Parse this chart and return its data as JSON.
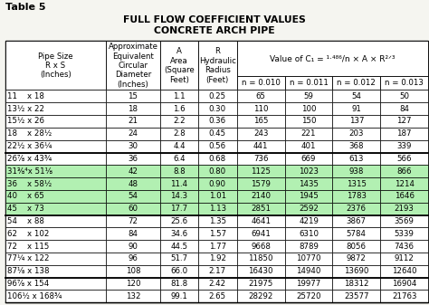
{
  "title_line1": "FULL FLOW COEFFICIENT VALUES",
  "title_line2": "CONCRETE ARCH PIPE",
  "table_label": "Table 5",
  "rows": [
    [
      "11    x 18",
      "15",
      "1.1",
      "0.25",
      "65",
      "59",
      "54",
      "50"
    ],
    [
      "13½ x 22",
      "18",
      "1.6",
      "0.30",
      "110",
      "100",
      "91",
      "84"
    ],
    [
      "15½ x 26",
      "21",
      "2.2",
      "0.36",
      "165",
      "150",
      "137",
      "127"
    ],
    [
      "18    x 28½",
      "24",
      "2.8",
      "0.45",
      "243",
      "221",
      "203",
      "187"
    ],
    [
      "22½ x 36¼",
      "30",
      "4.4",
      "0.56",
      "441",
      "401",
      "368",
      "339"
    ],
    [
      "26⅞ x 43¾",
      "36",
      "6.4",
      "0.68",
      "736",
      "669",
      "613",
      "566"
    ],
    [
      "31⅜⁴x 51⅛",
      "42",
      "8.8",
      "0.80",
      "1125",
      "1023",
      "938",
      "866"
    ],
    [
      "36    x 58½",
      "48",
      "11.4",
      "0.90",
      "1579",
      "1435",
      "1315",
      "1214"
    ],
    [
      "40    x 65",
      "54",
      "14.3",
      "1.01",
      "2140",
      "1945",
      "1783",
      "1646"
    ],
    [
      "45    x 73",
      "60",
      "17.7",
      "1.13",
      "2851",
      "2592",
      "2376",
      "2193"
    ],
    [
      "54    x 88",
      "72",
      "25.6",
      "1.35",
      "4641",
      "4219",
      "3867",
      "3569"
    ],
    [
      "62    x 102",
      "84",
      "34.6",
      "1.57",
      "6941",
      "6310",
      "5784",
      "5339"
    ],
    [
      "72    x 115",
      "90",
      "44.5",
      "1.77",
      "9668",
      "8789",
      "8056",
      "7436"
    ],
    [
      "77¼ x 122",
      "96",
      "51.7",
      "1.92",
      "11850",
      "10770",
      "9872",
      "9112"
    ],
    [
      "87⅛ x 138",
      "108",
      "66.0",
      "2.17",
      "16430",
      "14940",
      "13690",
      "12640"
    ],
    [
      "96⅞ x 154",
      "120",
      "81.8",
      "2.42",
      "21975",
      "19977",
      "18312",
      "16904"
    ],
    [
      "106½ x 168¾",
      "132",
      "99.1",
      "2.65",
      "28292",
      "25720",
      "23577",
      "21763"
    ]
  ],
  "group_separators_before": [
    5,
    10,
    15
  ],
  "highlight_rows": [
    6,
    7,
    8,
    9
  ],
  "highlight_color": "#b2f0b2",
  "bg_color": "#f5f5f0",
  "col_widths_rel": [
    2.1,
    1.15,
    0.78,
    0.82,
    1.0,
    1.0,
    1.0,
    1.0
  ],
  "header_texts_04": [
    "Pipe Size\nR x S\n(Inches)",
    "Approximate\nEquivalent\nCircular\nDiameter\n(Inches)",
    "A\nArea\n(Square\nFeet)",
    "R\nHydraulic\nRadius\n(Feet)"
  ],
  "n_labels": [
    "n = 0.010",
    "n = 0.011",
    "n = 0.012",
    "n = 0.013"
  ],
  "font_size": 6.5
}
